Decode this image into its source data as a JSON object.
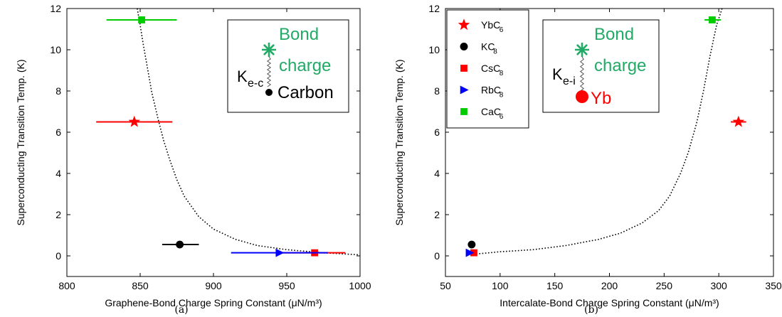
{
  "chart_data": [
    {
      "panel": "a",
      "type": "scatter",
      "caption": "(a)",
      "xlabel": "Graphene-Bond Charge Spring Constant (μN/m³)",
      "ylabel": "Superconducting Transition Temp. (K)",
      "xlim": [
        800,
        1000
      ],
      "ylim": [
        -1,
        12
      ],
      "xticks": [
        800,
        850,
        900,
        950,
        1000
      ],
      "yticks": [
        0,
        2,
        4,
        6,
        8,
        10,
        12
      ],
      "grid": false,
      "points": [
        {
          "series": "YbC6",
          "x": 846,
          "y": 6.5,
          "xerr_low": 820,
          "xerr_high": 872,
          "marker": "star",
          "color": "#ff0000"
        },
        {
          "series": "KC8",
          "x": 877,
          "y": 0.55,
          "xerr_low": 865,
          "xerr_high": 890,
          "marker": "circle",
          "color": "#000000"
        },
        {
          "series": "CsC8",
          "x": 969,
          "y": 0.15,
          "xerr_low": 945,
          "xerr_high": 990,
          "marker": "square",
          "color": "#ff0000"
        },
        {
          "series": "RbC8",
          "x": 945,
          "y": 0.15,
          "xerr_low": 912,
          "xerr_high": 978,
          "marker": "triangle-right",
          "color": "#0000ff"
        },
        {
          "series": "CaC6",
          "x": 851,
          "y": 11.45,
          "xerr_low": 827,
          "xerr_high": 875,
          "marker": "square",
          "color": "#00cc00"
        }
      ],
      "fit_curve": {
        "style": "dotted",
        "color": "#000000",
        "x": [
          848,
          850,
          852,
          855,
          858,
          862,
          866,
          870,
          875,
          880,
          890,
          900,
          915,
          930,
          950,
          975,
          1000
        ],
        "y": [
          12,
          11.2,
          10.3,
          9.1,
          7.9,
          6.7,
          5.6,
          4.7,
          3.7,
          2.9,
          1.9,
          1.3,
          0.8,
          0.5,
          0.3,
          0.15,
          0.05
        ]
      },
      "inset": {
        "bond": "Bond",
        "charge": "charge",
        "spring_main": "K",
        "spring_sub": "e-c",
        "atom": "Carbon",
        "atom_color": "#000000"
      }
    },
    {
      "panel": "b",
      "type": "scatter",
      "caption": "(b)",
      "xlabel": "Intercalate-Bond Charge Spring Constant (μN/m³)",
      "ylabel": "Superconducting Transition Temp. (K)",
      "xlim": [
        50,
        350
      ],
      "ylim": [
        -1,
        12
      ],
      "xticks": [
        50,
        100,
        150,
        200,
        250,
        300,
        350
      ],
      "yticks": [
        0,
        2,
        4,
        6,
        8,
        10,
        12
      ],
      "grid": false,
      "legend_position": "top-left",
      "points": [
        {
          "series": "YbC6",
          "x": 318,
          "y": 6.5,
          "xerr_low": 311,
          "xerr_high": 325,
          "marker": "star",
          "color": "#ff0000"
        },
        {
          "series": "KC8",
          "x": 74,
          "y": 0.55,
          "xerr_low": 73,
          "xerr_high": 75,
          "marker": "circle",
          "color": "#000000"
        },
        {
          "series": "CsC8",
          "x": 76,
          "y": 0.15,
          "xerr_low": 75,
          "xerr_high": 77,
          "marker": "square",
          "color": "#ff0000"
        },
        {
          "series": "RbC8",
          "x": 72,
          "y": 0.15,
          "xerr_low": 71,
          "xerr_high": 73,
          "marker": "triangle-right",
          "color": "#0000ff"
        },
        {
          "series": "CaC6",
          "x": 294,
          "y": 11.45,
          "xerr_low": 287,
          "xerr_high": 302,
          "marker": "square",
          "color": "#00cc00"
        }
      ],
      "fit_curve": {
        "style": "dotted",
        "color": "#000000",
        "x": [
          70,
          100,
          130,
          160,
          190,
          210,
          230,
          245,
          255,
          265,
          272,
          280,
          286,
          292,
          298,
          303
        ],
        "y": [
          0.05,
          0.2,
          0.3,
          0.5,
          0.8,
          1.1,
          1.6,
          2.2,
          2.9,
          4.0,
          5.0,
          6.5,
          8.0,
          9.7,
          11.2,
          12
        ]
      },
      "inset": {
        "bond": "Bond",
        "charge": "charge",
        "spring_main": "K",
        "spring_sub": "e-i",
        "atom": "Yb",
        "atom_color": "#ff0000"
      },
      "legend": [
        {
          "main": "YbC",
          "sub": "6",
          "marker": "star",
          "color": "#ff0000"
        },
        {
          "main": "KC",
          "sub": "8",
          "marker": "circle",
          "color": "#000000"
        },
        {
          "main": "CsC",
          "sub": "8",
          "marker": "square",
          "color": "#ff0000"
        },
        {
          "main": "RbC",
          "sub": "8",
          "marker": "triangle-right",
          "color": "#0000ff"
        },
        {
          "main": "CaC",
          "sub": "6",
          "marker": "square",
          "color": "#00cc00"
        }
      ]
    }
  ]
}
